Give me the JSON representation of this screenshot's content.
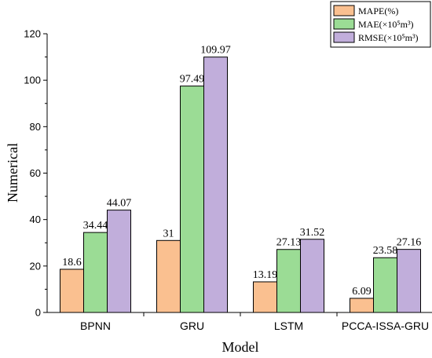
{
  "chart_data": {
    "type": "bar",
    "categories": [
      "BPNN",
      "GRU",
      "LSTM",
      "PCCA-ISSA-GRU"
    ],
    "series": [
      {
        "name": "MAPE(%)",
        "values": [
          18.6,
          31,
          13.19,
          6.09
        ],
        "labels": [
          "18.6",
          "31",
          "13.19",
          "6.09"
        ],
        "color": "#FAC090"
      },
      {
        "name": "MAE(×10⁵m³)",
        "values": [
          34.44,
          97.49,
          27.13,
          23.58
        ],
        "labels": [
          "34.44",
          "97.49",
          "27.13",
          "23.58"
        ],
        "color": "#9BDC95"
      },
      {
        "name": "RMSE(×10⁵m³)",
        "values": [
          44.07,
          109.97,
          31.52,
          27.16
        ],
        "labels": [
          "44.07",
          "109.97",
          "31.52",
          "27.16"
        ],
        "color": "#C1AEDB"
      }
    ],
    "xlabel": "Model",
    "ylabel": "Numerical",
    "ylim": [
      0,
      120
    ],
    "yticks": [
      0,
      20,
      40,
      60,
      80,
      100,
      120
    ],
    "legend_position": "top-right",
    "grid": false
  }
}
